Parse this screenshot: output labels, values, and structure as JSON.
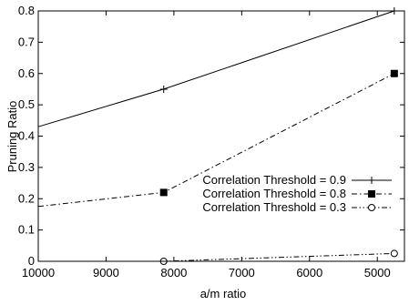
{
  "chart_data": {
    "type": "line",
    "xlabel": "a/m ratio",
    "ylabel": "Pruning Ratio",
    "xlim": [
      10000,
      4600
    ],
    "ylim": [
      0,
      0.8
    ],
    "x_reversed": true,
    "xticks": [
      10000,
      9000,
      8000,
      7000,
      6000,
      5000
    ],
    "xtick_labels": [
      "10000",
      "9000",
      "8000",
      "7000",
      "6000",
      "5000"
    ],
    "yticks": [
      0,
      0.1,
      0.2,
      0.3,
      0.4,
      0.5,
      0.6,
      0.7,
      0.8
    ],
    "ytick_labels": [
      "0",
      "0.1",
      "0.2",
      "0.3",
      "0.4",
      "0.5",
      "0.6",
      "0.7",
      "0.8"
    ],
    "grid": false,
    "legend_position": "center-right",
    "series": [
      {
        "name": "Correlation Threshold = 0.9",
        "marker": "plus",
        "dash": "solid",
        "x": [
          10000,
          8150,
          4750
        ],
        "y": [
          0.43,
          0.55,
          0.8
        ],
        "marked": [
          false,
          true,
          true
        ]
      },
      {
        "name": "Correlation Threshold = 0.8",
        "marker": "filled-square",
        "dash": "dash-dot",
        "x": [
          10000,
          8150,
          4750
        ],
        "y": [
          0.175,
          0.22,
          0.6
        ],
        "marked": [
          false,
          true,
          true
        ]
      },
      {
        "name": "Correlation Threshold = 0.3",
        "marker": "open-circle",
        "dash": "dash-dot-dot",
        "x": [
          10000,
          8150,
          4750
        ],
        "y": [
          0,
          0,
          0.025
        ],
        "marked": [
          false,
          true,
          true
        ]
      }
    ]
  }
}
